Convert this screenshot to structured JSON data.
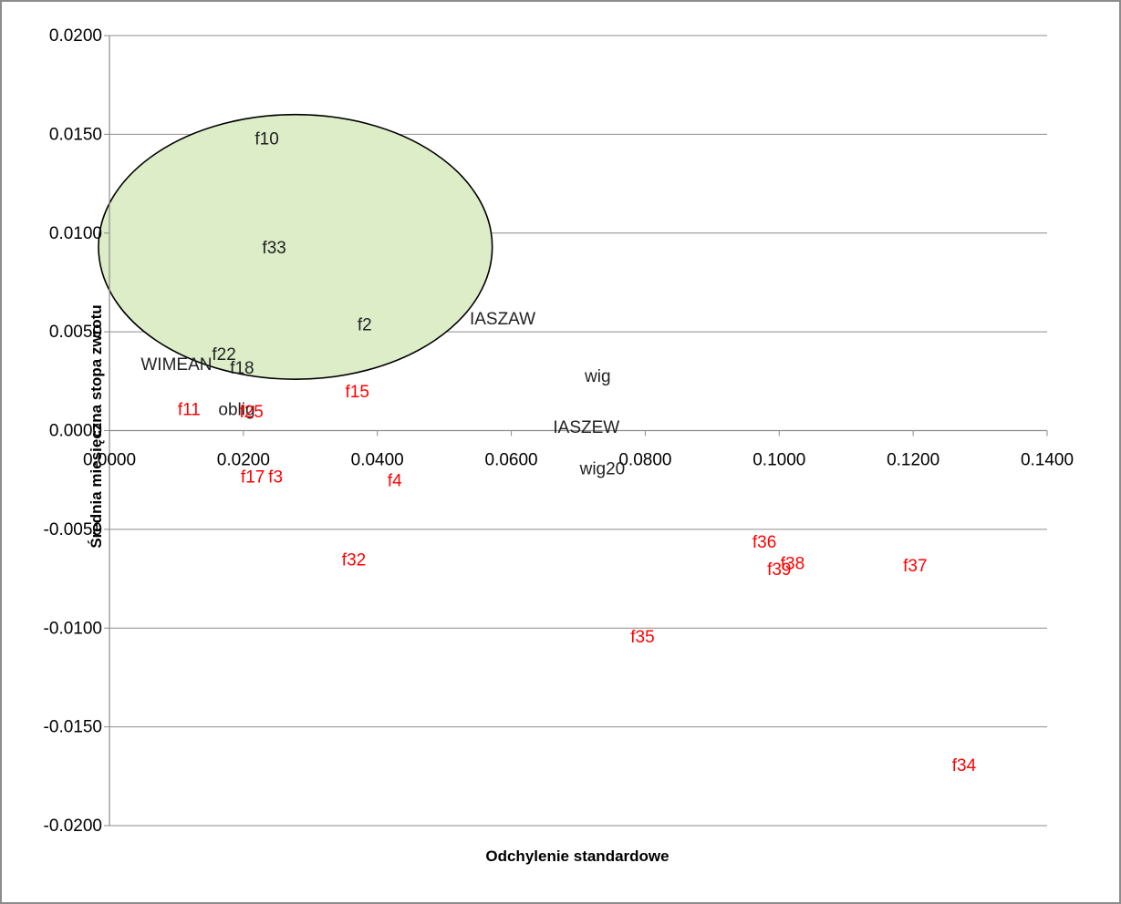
{
  "chart_data": {
    "type": "scatter",
    "title": "",
    "xlabel": "Odchylenie standardowe",
    "ylabel": "Średnia miesięczna stopa zwrotu",
    "xlim": [
      0,
      0.14
    ],
    "ylim": [
      -0.02,
      0.02
    ],
    "x_ticks": [
      "0.0000",
      "0.0200",
      "0.0400",
      "0.0600",
      "0.0800",
      "0.1000",
      "0.1200",
      "0.1400"
    ],
    "y_ticks": [
      "0.0200",
      "0.0150",
      "0.0100",
      "0.0050",
      "0.0000",
      "-0.0050",
      "-0.0100",
      "-0.0150",
      "-0.0200"
    ],
    "grid": true,
    "legend": "none",
    "colors": {
      "positive": "#222222",
      "negative": "#ff0000",
      "highlight_fill": "#dcedc8"
    },
    "highlight_ellipse": {
      "x_range": [
        0,
        0.0562
      ],
      "y_range": [
        0.0026,
        0.016
      ]
    },
    "points": [
      {
        "label": "f10",
        "x": 0.0235,
        "y": 0.0148,
        "color": "#222222"
      },
      {
        "label": "f33",
        "x": 0.0246,
        "y": 0.0093,
        "color": "#222222"
      },
      {
        "label": "f2",
        "x": 0.0381,
        "y": 0.0054,
        "color": "#222222"
      },
      {
        "label": "IASZAW",
        "x": 0.0587,
        "y": 0.0057,
        "color": "#222222"
      },
      {
        "label": "f22",
        "x": 0.0171,
        "y": 0.0039,
        "color": "#222222"
      },
      {
        "label": "WIMEAN",
        "x": 0.01,
        "y": 0.0034,
        "color": "#222222"
      },
      {
        "label": "f18",
        "x": 0.0198,
        "y": 0.0032,
        "color": "#222222"
      },
      {
        "label": "wig",
        "x": 0.0729,
        "y": 0.0028,
        "color": "#222222"
      },
      {
        "label": "oblig",
        "x": 0.019,
        "y": 0.0011,
        "color": "#222222"
      },
      {
        "label": "IASZEW",
        "x": 0.0712,
        "y": 0.0002,
        "color": "#222222"
      },
      {
        "label": "wig20",
        "x": 0.0736,
        "y": -0.0019,
        "color": "#222222"
      },
      {
        "label": "f15",
        "x": 0.037,
        "y": 0.002,
        "color": "#ff0000"
      },
      {
        "label": "f11",
        "x": 0.0119,
        "y": 0.0011,
        "color": "#ff0000"
      },
      {
        "label": "f25",
        "x": 0.0212,
        "y": 0.001,
        "color": "#ff0000"
      },
      {
        "label": "f17",
        "x": 0.0214,
        "y": -0.0023,
        "color": "#ff0000"
      },
      {
        "label": "f3",
        "x": 0.0248,
        "y": -0.0023,
        "color": "#ff0000"
      },
      {
        "label": "f4",
        "x": 0.0426,
        "y": -0.0025,
        "color": "#ff0000"
      },
      {
        "label": "f32",
        "x": 0.0365,
        "y": -0.0065,
        "color": "#ff0000"
      },
      {
        "label": "f36",
        "x": 0.0978,
        "y": -0.0056,
        "color": "#ff0000"
      },
      {
        "label": "f38",
        "x": 0.102,
        "y": -0.0067,
        "color": "#ff0000"
      },
      {
        "label": "f39",
        "x": 0.1,
        "y": -0.007,
        "color": "#ff0000"
      },
      {
        "label": "f37",
        "x": 0.1203,
        "y": -0.0068,
        "color": "#ff0000"
      },
      {
        "label": "f35",
        "x": 0.0796,
        "y": -0.0104,
        "color": "#ff0000"
      },
      {
        "label": "f34",
        "x": 0.1276,
        "y": -0.0169,
        "color": "#ff0000"
      }
    ]
  }
}
